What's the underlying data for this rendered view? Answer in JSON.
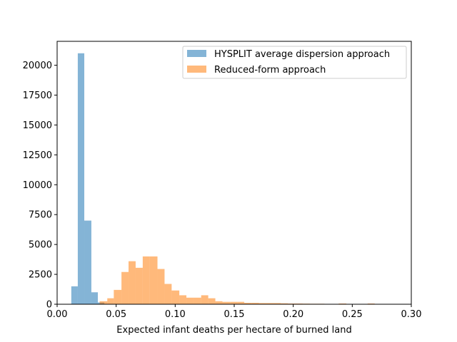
{
  "chart_data": {
    "type": "histogram",
    "title": "",
    "xlabel": "Expected infant deaths per hectare of burned land",
    "ylabel": "",
    "xlim": [
      0.0,
      0.3
    ],
    "ylim": [
      0,
      22000
    ],
    "x_ticks": [
      0.0,
      0.05,
      0.1,
      0.15,
      0.2,
      0.25,
      0.3
    ],
    "x_tick_labels": [
      "0.00",
      "0.05",
      "0.10",
      "0.15",
      "0.20",
      "0.25",
      "0.30"
    ],
    "y_ticks": [
      0,
      2500,
      5000,
      7500,
      10000,
      12500,
      15000,
      17500,
      20000
    ],
    "y_tick_labels": [
      "0",
      "2500",
      "5000",
      "7500",
      "10000",
      "12500",
      "15000",
      "17500",
      "20000"
    ],
    "grid": false,
    "legend_position": "upper-right",
    "series": [
      {
        "name": "HYSPLIT average dispersion approach",
        "color": "#1f77b4",
        "opacity": 0.55,
        "bins": [
          {
            "x0": 0.012,
            "x1": 0.0175,
            "count": 1500
          },
          {
            "x0": 0.0175,
            "x1": 0.023,
            "count": 21000
          },
          {
            "x0": 0.023,
            "x1": 0.029,
            "count": 7000
          },
          {
            "x0": 0.029,
            "x1": 0.0345,
            "count": 1000
          },
          {
            "x0": 0.0345,
            "x1": 0.04,
            "count": 150
          }
        ]
      },
      {
        "name": "Reduced-form approach",
        "color": "#ff7f0e",
        "opacity": 0.55,
        "bins": [
          {
            "x0": 0.036,
            "x1": 0.0425,
            "count": 250
          },
          {
            "x0": 0.0425,
            "x1": 0.048,
            "count": 500
          },
          {
            "x0": 0.048,
            "x1": 0.0545,
            "count": 1200
          },
          {
            "x0": 0.0545,
            "x1": 0.0605,
            "count": 2700
          },
          {
            "x0": 0.0605,
            "x1": 0.0665,
            "count": 3600
          },
          {
            "x0": 0.0665,
            "x1": 0.0725,
            "count": 3050
          },
          {
            "x0": 0.0725,
            "x1": 0.0785,
            "count": 4000
          },
          {
            "x0": 0.0785,
            "x1": 0.085,
            "count": 4000
          },
          {
            "x0": 0.085,
            "x1": 0.091,
            "count": 2950
          },
          {
            "x0": 0.091,
            "x1": 0.097,
            "count": 1700
          },
          {
            "x0": 0.097,
            "x1": 0.1035,
            "count": 1150
          },
          {
            "x0": 0.1035,
            "x1": 0.1095,
            "count": 750
          },
          {
            "x0": 0.1095,
            "x1": 0.1155,
            "count": 550
          },
          {
            "x0": 0.1155,
            "x1": 0.122,
            "count": 550
          },
          {
            "x0": 0.122,
            "x1": 0.128,
            "count": 750
          },
          {
            "x0": 0.128,
            "x1": 0.134,
            "count": 500
          },
          {
            "x0": 0.134,
            "x1": 0.14,
            "count": 250
          },
          {
            "x0": 0.14,
            "x1": 0.1465,
            "count": 200
          },
          {
            "x0": 0.1465,
            "x1": 0.1525,
            "count": 200
          },
          {
            "x0": 0.1525,
            "x1": 0.1585,
            "count": 200
          },
          {
            "x0": 0.1585,
            "x1": 0.165,
            "count": 120
          },
          {
            "x0": 0.165,
            "x1": 0.171,
            "count": 120
          },
          {
            "x0": 0.171,
            "x1": 0.177,
            "count": 100
          },
          {
            "x0": 0.177,
            "x1": 0.183,
            "count": 100
          },
          {
            "x0": 0.183,
            "x1": 0.1895,
            "count": 100
          },
          {
            "x0": 0.1895,
            "x1": 0.1955,
            "count": 80
          },
          {
            "x0": 0.1955,
            "x1": 0.2015,
            "count": 60
          },
          {
            "x0": 0.2015,
            "x1": 0.208,
            "count": 60
          },
          {
            "x0": 0.208,
            "x1": 0.214,
            "count": 50
          },
          {
            "x0": 0.214,
            "x1": 0.22,
            "count": 40
          },
          {
            "x0": 0.22,
            "x1": 0.2265,
            "count": 40
          },
          {
            "x0": 0.2265,
            "x1": 0.2325,
            "count": 20
          },
          {
            "x0": 0.2325,
            "x1": 0.2385,
            "count": 20
          },
          {
            "x0": 0.2385,
            "x1": 0.245,
            "count": 60
          },
          {
            "x0": 0.245,
            "x1": 0.251,
            "count": 15
          },
          {
            "x0": 0.251,
            "x1": 0.257,
            "count": 15
          },
          {
            "x0": 0.257,
            "x1": 0.263,
            "count": 15
          },
          {
            "x0": 0.263,
            "x1": 0.269,
            "count": 60
          }
        ]
      }
    ]
  }
}
